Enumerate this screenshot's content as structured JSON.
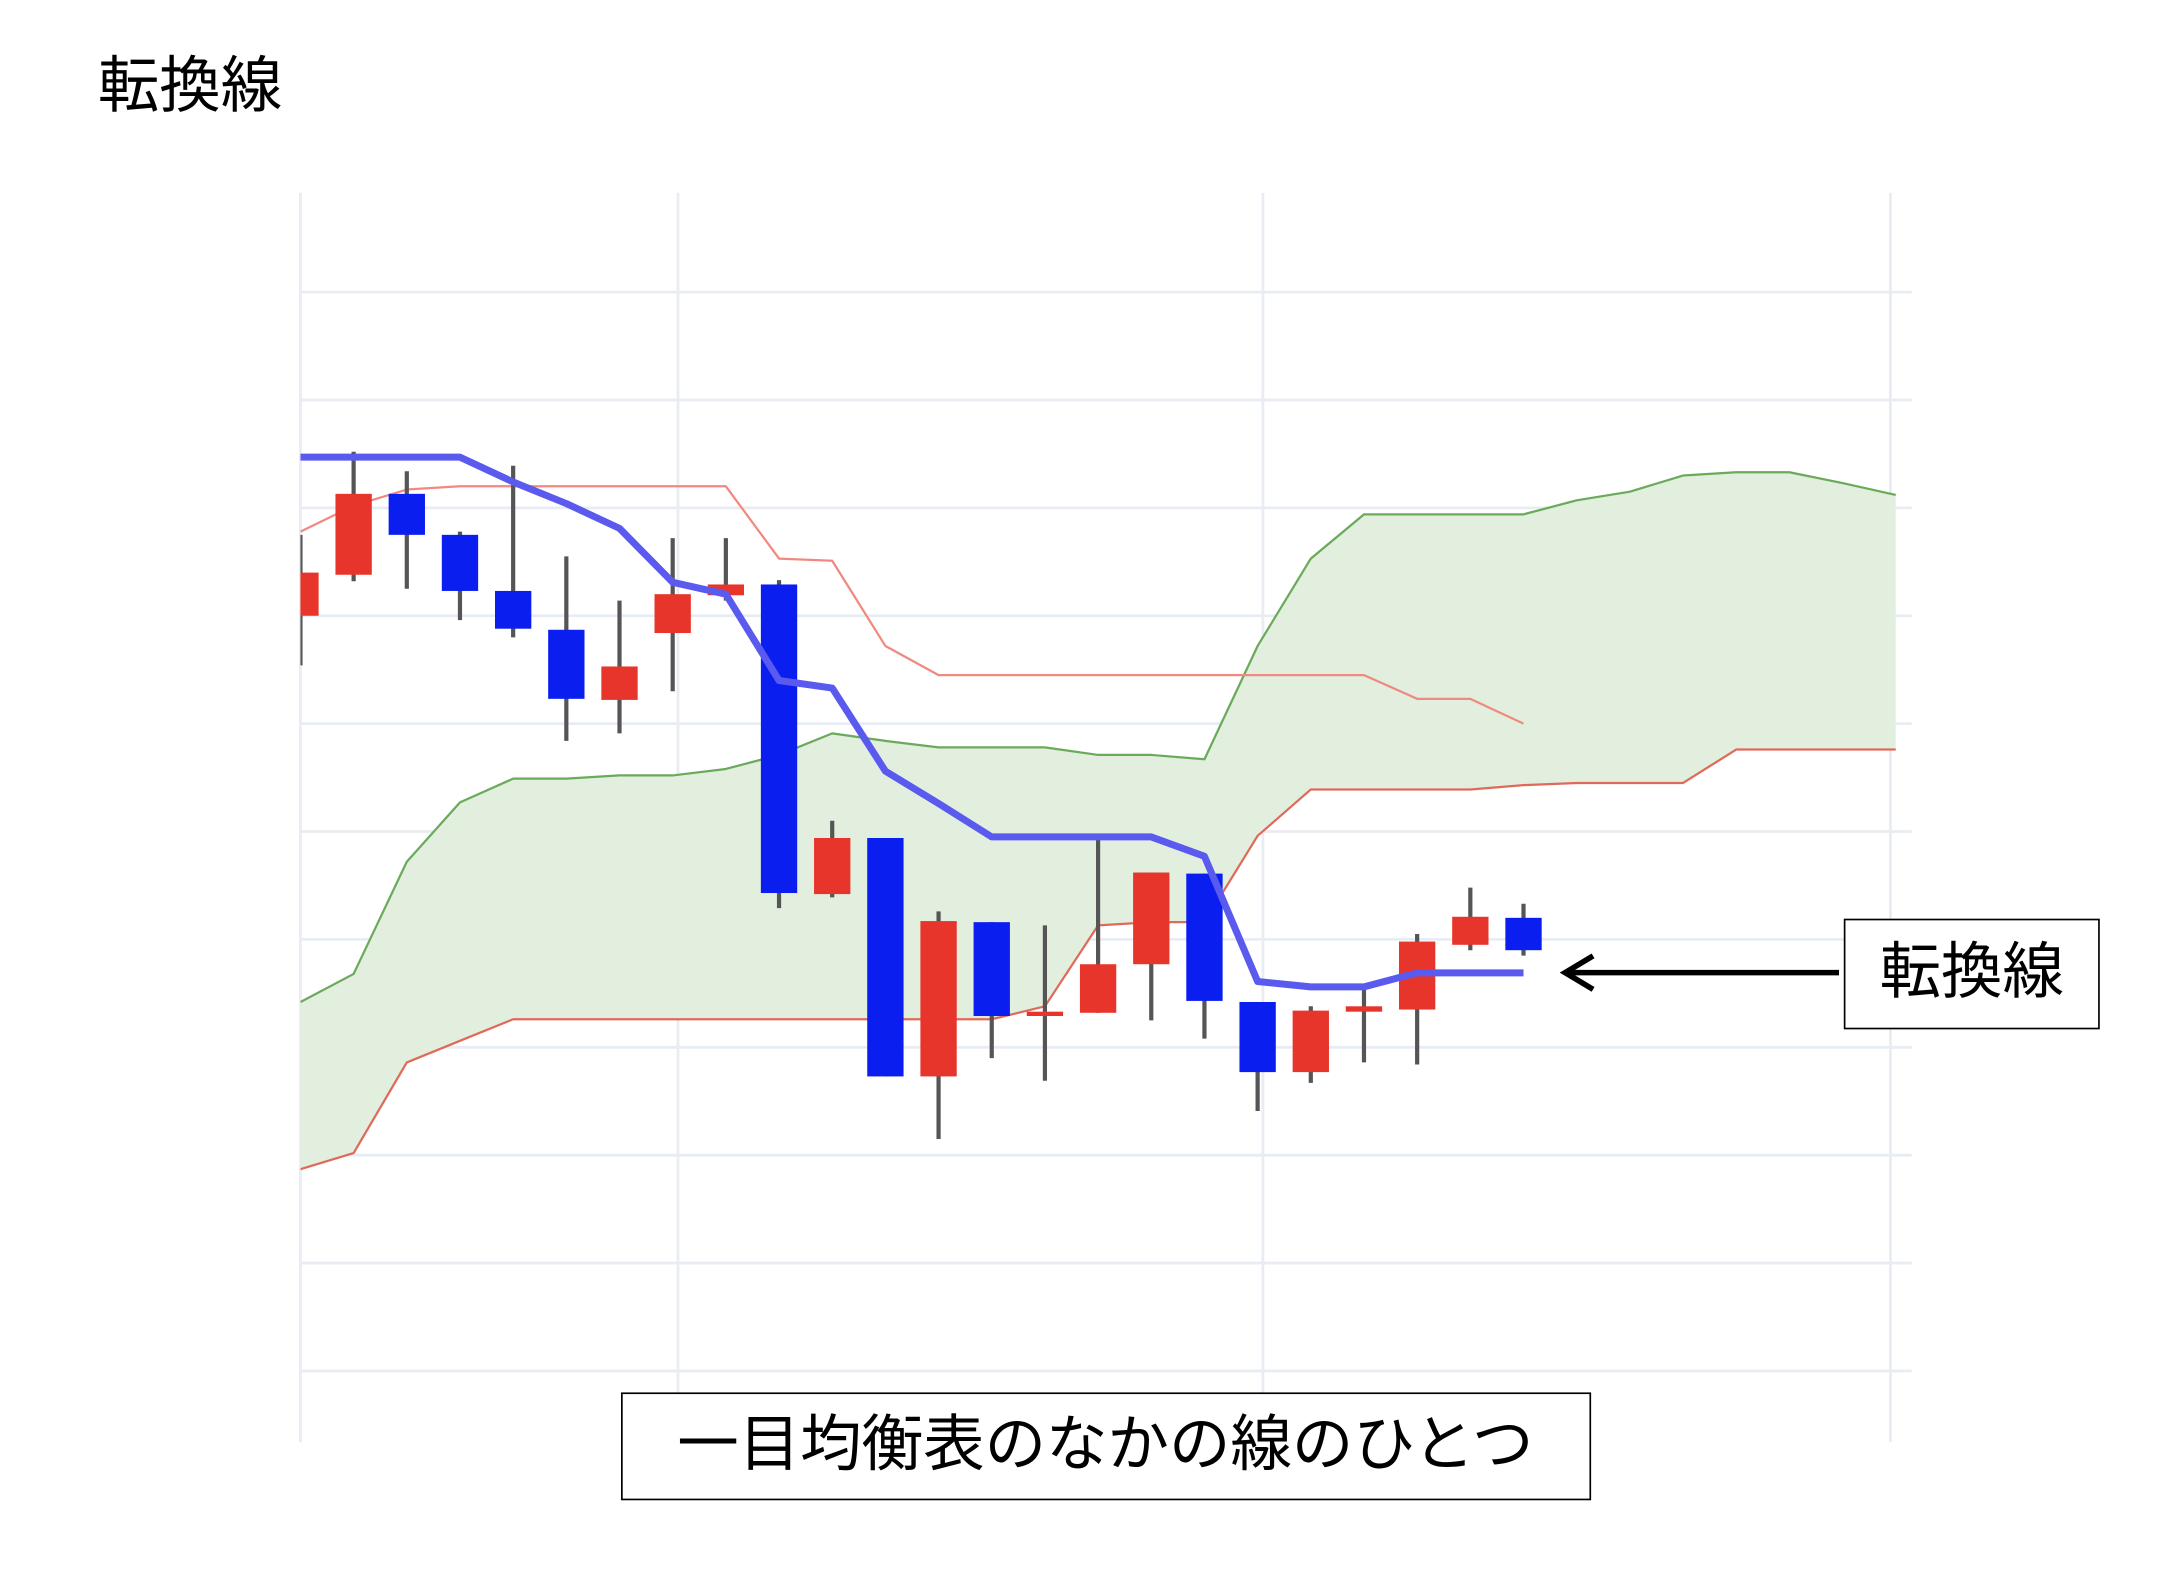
{
  "chart_data": {
    "type": "candlestick",
    "title": "転換線",
    "annotation": "転換線",
    "caption": "一目均衡表のなかの線のひとつ",
    "categories": [
      null,
      null,
      null,
      null,
      null,
      null,
      null,
      null,
      null,
      null,
      null,
      null,
      null,
      null,
      null,
      null,
      null,
      null,
      null,
      null,
      null,
      null,
      null,
      null,
      null,
      null,
      null,
      null,
      null,
      null,
      null
    ],
    "xlim": [
      0,
      30.3
    ],
    "xticks": [
      0,
      7.1,
      18.1,
      29.9
    ],
    "ylim": [
      -0.66,
      10.92
    ],
    "yticks": [
      0,
      1,
      2,
      3,
      4,
      5,
      6,
      7,
      8,
      9,
      10
    ],
    "grid": true,
    "candles": {
      "up_color": "#e8352b",
      "down_color": "#0a1ef0",
      "wick_color": "#555555",
      "open": [
        7.0,
        7.38,
        8.13,
        7.75,
        7.23,
        6.87,
        6.22,
        6.84,
        7.19,
        7.29,
        4.42,
        4.94,
        2.73,
        4.16,
        3.29,
        3.32,
        3.77,
        4.61,
        3.42,
        2.77,
        3.33,
        3.35,
        3.95,
        4.2,
        null,
        null,
        null,
        null,
        null,
        null,
        null
      ],
      "high": [
        7.75,
        8.52,
        8.34,
        7.78,
        8.39,
        7.55,
        7.14,
        7.72,
        7.72,
        7.33,
        5.1,
        4.94,
        4.26,
        4.16,
        4.13,
        4.97,
        4.62,
        4.61,
        3.42,
        3.38,
        3.54,
        4.05,
        4.48,
        4.33,
        null,
        null,
        null,
        null,
        null,
        null,
        null
      ],
      "low": [
        6.54,
        7.32,
        7.25,
        6.96,
        6.8,
        5.84,
        5.91,
        6.3,
        7.14,
        4.29,
        4.39,
        2.73,
        2.15,
        2.9,
        2.69,
        3.32,
        3.25,
        3.08,
        2.41,
        2.67,
        2.86,
        2.84,
        3.9,
        3.85,
        null,
        null,
        null,
        null,
        null,
        null,
        null
      ],
      "close": [
        7.4,
        8.13,
        7.75,
        7.23,
        6.88,
        6.23,
        6.53,
        7.2,
        7.29,
        4.43,
        4.94,
        2.73,
        4.17,
        3.29,
        3.33,
        3.77,
        4.62,
        3.43,
        2.77,
        3.34,
        3.38,
        3.98,
        4.21,
        3.9,
        null,
        null,
        null,
        null,
        null,
        null,
        null
      ]
    },
    "series": [
      {
        "color": "#5a5aee",
        "width": 5,
        "values": [
          8.47,
          8.47,
          8.47,
          8.47,
          8.24,
          8.04,
          7.81,
          7.31,
          7.2,
          6.4,
          6.33,
          5.56,
          5.26,
          4.95,
          4.95,
          4.95,
          4.95,
          4.77,
          3.61,
          3.56,
          3.56,
          3.69,
          3.69,
          3.69,
          null,
          null,
          null,
          null,
          null,
          null,
          null
        ]
      },
      {
        "color": "#f08a80",
        "width": 1.6,
        "values": [
          7.78,
          8.02,
          8.17,
          8.2,
          8.2,
          8.2,
          8.2,
          8.2,
          8.2,
          7.53,
          7.51,
          6.72,
          6.45,
          6.45,
          6.45,
          6.45,
          6.45,
          6.45,
          6.45,
          6.45,
          6.45,
          6.23,
          6.23,
          6.0,
          null,
          null,
          null,
          null,
          null,
          null,
          null
        ]
      },
      {
        "color": "#6aaa5a",
        "width": 1.6,
        "values": [
          3.42,
          3.68,
          4.72,
          5.27,
          5.49,
          5.49,
          5.52,
          5.52,
          5.58,
          5.71,
          5.91,
          5.84,
          5.78,
          5.78,
          5.78,
          5.71,
          5.71,
          5.67,
          6.72,
          7.53,
          7.94,
          7.94,
          7.94,
          7.94,
          8.07,
          8.15,
          8.3,
          8.33,
          8.33,
          8.23,
          8.12
        ]
      },
      {
        "color": "#e06a5a",
        "width": 1.6,
        "values": [
          1.87,
          2.02,
          2.86,
          3.06,
          3.26,
          3.26,
          3.26,
          3.26,
          3.26,
          3.26,
          3.26,
          3.26,
          3.26,
          3.26,
          3.38,
          4.13,
          4.16,
          4.16,
          4.96,
          5.39,
          5.39,
          5.39,
          5.39,
          5.43,
          5.45,
          5.45,
          5.45,
          5.76,
          5.76,
          5.76,
          5.76
        ]
      }
    ],
    "cloud_color": "#e2efdf"
  }
}
